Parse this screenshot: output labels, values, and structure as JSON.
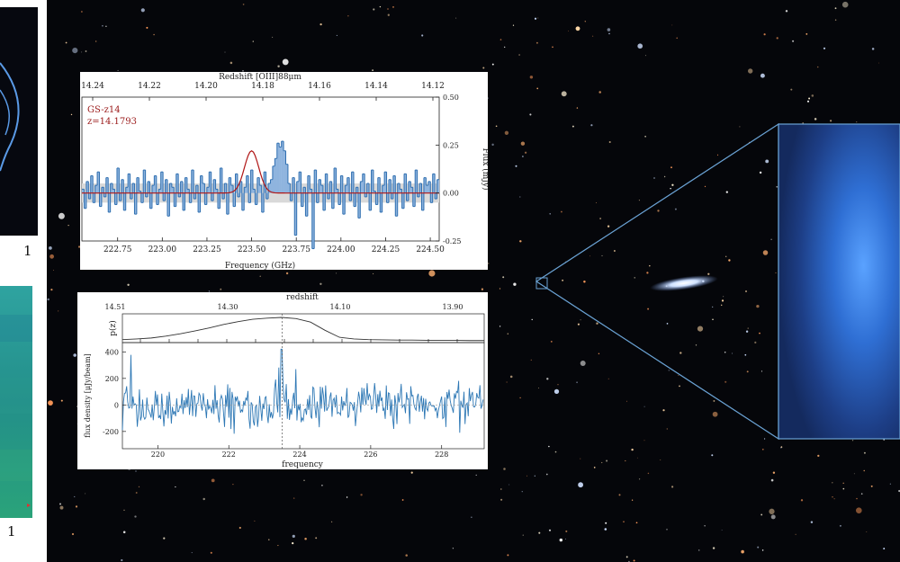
{
  "left_strip": {
    "top_tick": "1",
    "bottom_tick": "1"
  },
  "chart_data": [
    {
      "type": "bar",
      "title": "",
      "source_name": "GS-z14",
      "redshift_label": "z=14.1793",
      "top_axis_label": "Redshift [OIII]88μm",
      "top_ticks": [
        "14.24",
        "14.22",
        "14.20",
        "14.18",
        "14.16",
        "14.14",
        "14.12"
      ],
      "xlabel": "Frequency (GHz)",
      "x_ticks": [
        "222.75",
        "223.00",
        "223.25",
        "223.50",
        "223.75",
        "224.00",
        "224.25",
        "224.50"
      ],
      "xlim": [
        222.55,
        224.55
      ],
      "ylabel": "Flux (mJy)",
      "y_ticks": [
        "-0.25",
        "0.00",
        "0.25",
        "0.50"
      ],
      "ylim": [
        -0.25,
        0.5
      ],
      "noise_band": 0.05,
      "line_fit": {
        "center": 223.5,
        "amplitude": 0.22,
        "sigma": 0.04
      },
      "step_ghz": 0.0135,
      "values": [
        0.02,
        -0.08,
        0.06,
        -0.03,
        0.09,
        -0.05,
        0.04,
        0.11,
        -0.07,
        0.03,
        -0.02,
        0.08,
        -0.1,
        0.05,
        0.02,
        -0.06,
        0.13,
        -0.04,
        0.07,
        -0.09,
        0.03,
        0.1,
        -0.03,
        0.05,
        -0.11,
        0.08,
        0.01,
        -0.05,
        0.12,
        -0.02,
        0.06,
        -0.08,
        0.04,
        0.09,
        -0.06,
        0.02,
        0.11,
        -0.04,
        0.07,
        -0.12,
        0.05,
        0.03,
        -0.07,
        0.1,
        -0.02,
        0.06,
        -0.09,
        0.08,
        0.02,
        -0.05,
        0.12,
        -0.03,
        0.04,
        -0.1,
        0.09,
        0.05,
        -0.06,
        0.03,
        0.11,
        -0.04,
        0.07,
        0.02,
        -0.08,
        0.13,
        -0.03,
        0.05,
        -0.11,
        0.08,
        0.04,
        -0.07,
        0.1,
        -0.02,
        0.06,
        -0.09,
        0.03,
        0.09,
        -0.05,
        0.12,
        0.02,
        -0.06,
        0.08,
        0.04,
        -0.1,
        0.11,
        -0.03,
        0.05,
        0.07,
        0.14,
        0.18,
        0.26,
        0.24,
        0.27,
        0.22,
        0.15,
        0.05,
        -0.04,
        0.08,
        -0.22,
        0.06,
        0.11,
        -0.07,
        0.03,
        -0.12,
        0.09,
        0.02,
        -0.29,
        0.12,
        -0.05,
        0.07,
        0.04,
        -0.09,
        0.1,
        -0.03,
        0.06,
        -0.08,
        0.13,
        0.02,
        -0.06,
        0.09,
        -0.11,
        0.04,
        0.08,
        -0.04,
        0.11,
        -0.07,
        0.03,
        -0.13,
        0.06,
        0.1,
        -0.02,
        0.05,
        -0.09,
        0.12,
        0.01,
        -0.06,
        0.08,
        -0.1,
        0.04,
        0.11,
        -0.05,
        0.07,
        -0.03,
        0.09,
        -0.12,
        0.05,
        0.02,
        -0.08,
        0.1,
        -0.04,
        0.06,
        0.03,
        -0.07,
        0.12,
        -0.02,
        0.05,
        -0.09,
        0.08,
        0.04,
        0.06,
        -0.05,
        0.1,
        -0.03,
        0.07
      ]
    },
    {
      "type": "line",
      "title": "",
      "top_axis_label": "redshift",
      "top_ticks": [
        "14.51",
        "14.30",
        "14.10",
        "13.90"
      ],
      "xlabel": "frequency",
      "x_ticks": [
        "220",
        "222",
        "224",
        "226",
        "228"
      ],
      "xlim": [
        219.0,
        229.2
      ],
      "ylabel": "flux density [μJy/beam]",
      "y_ticks": [
        "-200",
        "0",
        "200",
        "400"
      ],
      "ylim": [
        -330,
        470
      ],
      "pz_label": "p(z)",
      "pz": [
        0.05,
        0.08,
        0.12,
        0.2,
        0.3,
        0.42,
        0.55,
        0.7,
        0.82,
        0.92,
        0.97,
        1.0,
        0.95,
        0.8,
        0.45,
        0.15,
        0.08,
        0.05,
        0.04,
        0.03,
        0.03,
        0.02,
        0.02,
        0.02,
        0.01,
        0.01
      ],
      "marked_frequency": 223.5,
      "step_ghz": 0.03,
      "amplitude": 160
    }
  ],
  "callout": {
    "stroke_color": "#6aa2d4",
    "zoom_color": "#3f78d6"
  }
}
